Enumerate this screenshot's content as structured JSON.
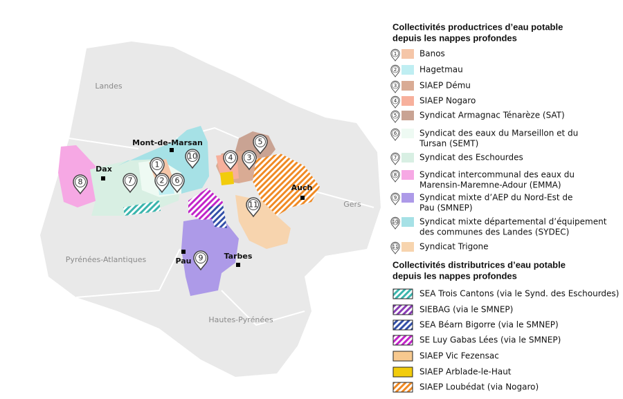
{
  "map": {
    "regions": [
      "Landes",
      "Gers",
      "Pyrénées-Atlantiques",
      "Hautes-Pyrénées"
    ],
    "cities": [
      "Dax",
      "Mont-de-Marsan",
      "Auch",
      "Pau",
      "Tarbes"
    ],
    "markers": [
      "1",
      "2",
      "3",
      "4",
      "5",
      "6",
      "7",
      "8",
      "9",
      "10",
      "11"
    ]
  },
  "legend": {
    "producers": {
      "title": [
        "Collectivités productrices d’eau potable",
        "depuis les nappes profondes"
      ],
      "items": [
        {
          "number": "1",
          "lines": [
            "Banos"
          ],
          "color": "#f5c6a8"
        },
        {
          "number": "2",
          "lines": [
            "Hagetmau"
          ],
          "color": "#bfeef2"
        },
        {
          "number": "3",
          "lines": [
            "SIAEP Dému"
          ],
          "color": "#d9ab94"
        },
        {
          "number": "4",
          "lines": [
            "SIAEP Nogaro"
          ],
          "color": "#f7b09c"
        },
        {
          "number": "5",
          "lines": [
            "Syndicat Armagnac Ténarèze (SAT)"
          ],
          "color": "#c9a393"
        },
        {
          "number": "6",
          "lines": [
            "Syndicat des eaux du Marseillon et du",
            "Tursan (SEMT)"
          ],
          "color": "#eefaf3"
        },
        {
          "number": "7",
          "lines": [
            "Syndicat des Eschourdes"
          ],
          "color": "#d8efe3"
        },
        {
          "number": "8",
          "lines": [
            "Syndicat intercommunal des eaux du",
            "Marensin-Maremne-Adour (EMMA)"
          ],
          "color": "#f6a8e4"
        },
        {
          "number": "9",
          "lines": [
            "Syndicat mixte d’AEP du Nord-Est de",
            "Pau (SMNEP)"
          ],
          "color": "#ad9ae8"
        },
        {
          "number": "10",
          "lines": [
            "Syndicat mixte départemental d’équipement",
            "des communes des Landes (SYDEC)"
          ],
          "color": "#a6e1e6"
        },
        {
          "number": "11",
          "lines": [
            "Syndicat Trigone"
          ],
          "color": "#f7d4ae"
        }
      ]
    },
    "distributors": {
      "title": [
        "Collectivités distributrices d’eau potable",
        "depuis les nappes profondes"
      ],
      "items": [
        {
          "lines": [
            "SEA Trois Cantons (via le Synd. des Eschourdes)"
          ],
          "color": "#3bb5ad",
          "hatched": true
        },
        {
          "lines": [
            "SIEBAG (via le SMNEP)"
          ],
          "color": "#8a3db5",
          "hatched": true
        },
        {
          "lines": [
            "SEA Béarn Bigorre (via le SMNEP)"
          ],
          "color": "#3350a8",
          "hatched": true
        },
        {
          "lines": [
            "SE Luy Gabas Lées (via le SMNEP)"
          ],
          "color": "#c225c9",
          "hatched": true
        },
        {
          "lines": [
            "SIAEP Vic Fezensac"
          ],
          "color": "#f7c98f",
          "hatched": false
        },
        {
          "lines": [
            "SIAEP Arblade-le-Haut"
          ],
          "color": "#f2cc0c",
          "hatched": false
        },
        {
          "lines": [
            "SIAEP Loubédat (via Nogaro)"
          ],
          "color": "#f08a24",
          "hatched": true
        }
      ]
    }
  }
}
